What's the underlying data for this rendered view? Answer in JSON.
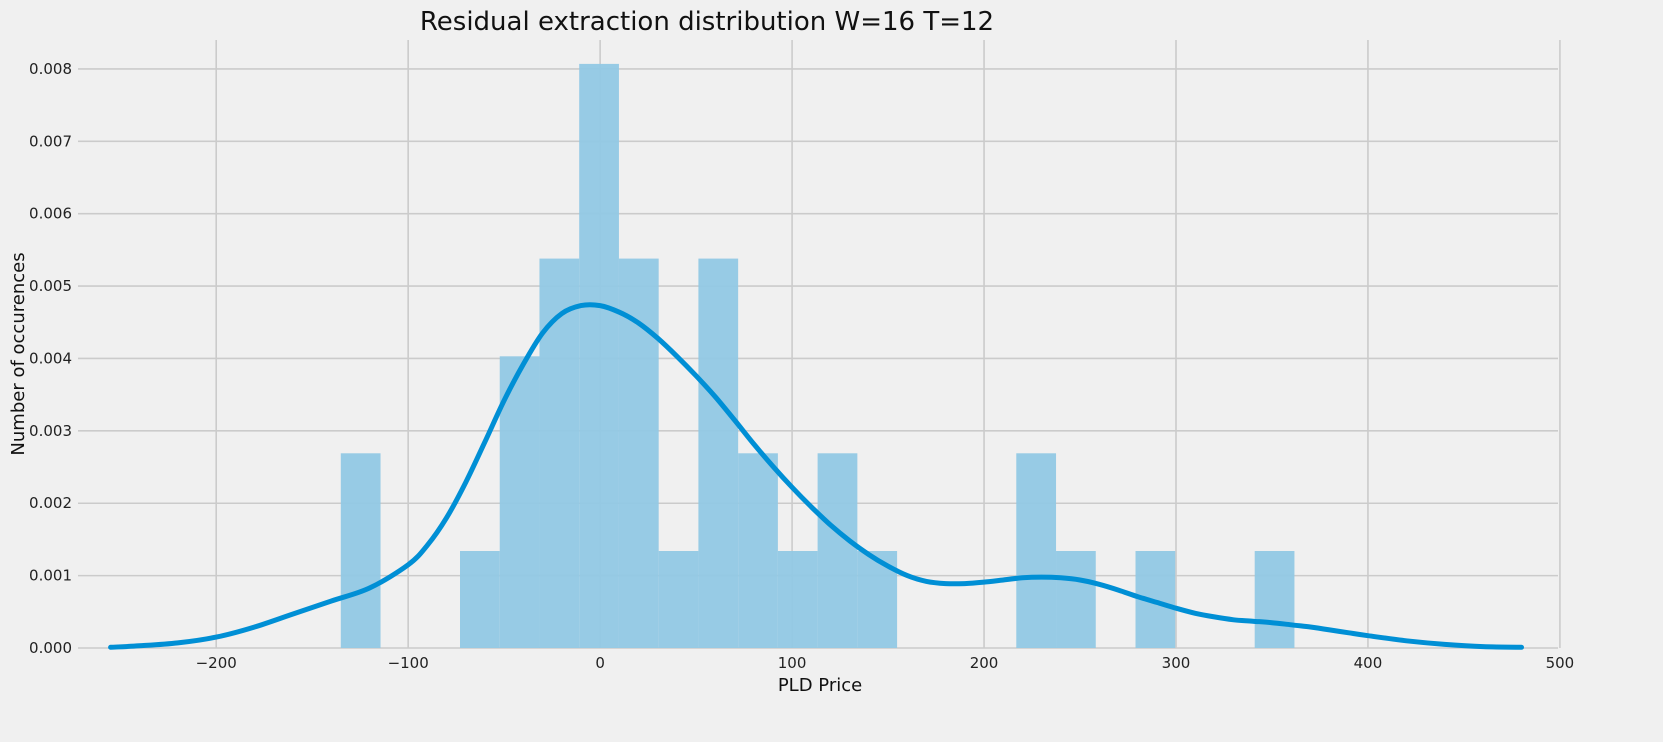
{
  "chart_data": {
    "type": "bar",
    "title": "Residual extraction distribution W=16 T=12",
    "xlabel": "PLD Price",
    "ylabel": "Number of occurences",
    "xlim": [
      -272,
      499
    ],
    "ylim": [
      0,
      0.0084
    ],
    "xticks": [
      -200,
      -100,
      0,
      100,
      200,
      300,
      400,
      500
    ],
    "xtick_labels": [
      "−200",
      "−100",
      "0",
      "100",
      "200",
      "300",
      "400",
      "500"
    ],
    "yticks": [
      0,
      0.001,
      0.002,
      0.003,
      0.004,
      0.005,
      0.006,
      0.007,
      0.008
    ],
    "ytick_labels": [
      "0.000",
      "0.001",
      "0.002",
      "0.003",
      "0.004",
      "0.005",
      "0.006",
      "0.007",
      "0.008"
    ],
    "grid": true,
    "bar_color": "#91c8e4",
    "line_color": "#008fd5",
    "histogram": [
      {
        "x0": -135.1,
        "x1": -114.4,
        "value": 0.00269
      },
      {
        "x0": -73.0,
        "x1": -52.3,
        "value": 0.00134
      },
      {
        "x0": -52.3,
        "x1": -31.6,
        "value": 0.00403
      },
      {
        "x0": -31.6,
        "x1": -10.9,
        "value": 0.00538
      },
      {
        "x0": -10.9,
        "x1": 9.8,
        "value": 0.00807
      },
      {
        "x0": 9.8,
        "x1": 30.5,
        "value": 0.00538
      },
      {
        "x0": 30.5,
        "x1": 51.2,
        "value": 0.00134
      },
      {
        "x0": 51.2,
        "x1": 71.9,
        "value": 0.00538
      },
      {
        "x0": 71.9,
        "x1": 92.6,
        "value": 0.00269
      },
      {
        "x0": 92.6,
        "x1": 113.3,
        "value": 0.00134
      },
      {
        "x0": 113.3,
        "x1": 134.0,
        "value": 0.00269
      },
      {
        "x0": 134.0,
        "x1": 154.7,
        "value": 0.00134
      },
      {
        "x0": 216.8,
        "x1": 237.5,
        "value": 0.00269
      },
      {
        "x0": 237.5,
        "x1": 258.2,
        "value": 0.00134
      },
      {
        "x0": 278.9,
        "x1": 299.6,
        "value": 0.00134
      },
      {
        "x0": 341.0,
        "x1": 361.7,
        "value": 0.00134
      }
    ],
    "kde": {
      "x": [
        -255,
        -240,
        -220,
        -200,
        -180,
        -160,
        -140,
        -120,
        -100,
        -90,
        -80,
        -70,
        -60,
        -50,
        -40,
        -30,
        -20,
        -10,
        0,
        10,
        20,
        30,
        40,
        50,
        60,
        70,
        80,
        90,
        100,
        110,
        120,
        130,
        140,
        150,
        160,
        170,
        180,
        190,
        200,
        210,
        220,
        230,
        240,
        250,
        260,
        270,
        280,
        290,
        300,
        310,
        320,
        330,
        340,
        350,
        360,
        370,
        380,
        390,
        400,
        420,
        440,
        460,
        480
      ],
      "y": [
        1e-05,
        3e-05,
        7e-05,
        0.00015,
        0.00029,
        0.00047,
        0.00065,
        0.00083,
        0.00115,
        0.00142,
        0.0018,
        0.00229,
        0.00285,
        0.00342,
        0.00392,
        0.00435,
        0.00462,
        0.00473,
        0.00473,
        0.00464,
        0.00449,
        0.00428,
        0.00403,
        0.00376,
        0.00347,
        0.00315,
        0.00282,
        0.00251,
        0.00222,
        0.00195,
        0.0017,
        0.00148,
        0.00129,
        0.00113,
        0.001,
        0.00092,
        0.00089,
        0.00089,
        0.00091,
        0.00094,
        0.00097,
        0.00098,
        0.00097,
        0.00094,
        0.00088,
        0.0008,
        0.00071,
        0.00063,
        0.00055,
        0.00048,
        0.00043,
        0.00039,
        0.00037,
        0.00035,
        0.00032,
        0.00029,
        0.00025,
        0.00021,
        0.00017,
        0.0001,
        5e-05,
        2e-05,
        1e-05
      ]
    }
  }
}
